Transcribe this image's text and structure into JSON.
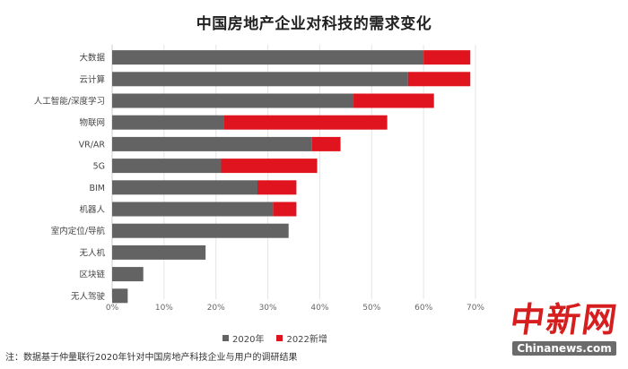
{
  "chart_data": {
    "type": "bar",
    "orientation": "horizontal",
    "stacked": true,
    "title": "中国房地产企业对科技的需求变化",
    "categories": [
      "大数据",
      "云计算",
      "人工智能/深度学习",
      "物联网",
      "VR/AR",
      "5G",
      "BIM",
      "机器人",
      "室内定位/导航",
      "无人机",
      "区块链",
      "无人驾驶"
    ],
    "series": [
      {
        "name": "2020年",
        "color": "#636363",
        "values": [
          60,
          57,
          46.5,
          21.5,
          38.5,
          21,
          28,
          31,
          34,
          18,
          6,
          3
        ]
      },
      {
        "name": "2022新增",
        "color": "#e0141e",
        "values": [
          9,
          12,
          15.5,
          31.5,
          5.5,
          18.5,
          7.5,
          4.5,
          0,
          0,
          0,
          0
        ]
      }
    ],
    "xlim": [
      0,
      70
    ],
    "xticks": [
      "0%",
      "10%",
      "20%",
      "30%",
      "40%",
      "50%",
      "60%",
      "70%"
    ],
    "grid": true,
    "legend": "bottom"
  },
  "note": "注：数据基于仲量联行2020年针对中国房地产科技企业与用户的调研结果",
  "watermark": {
    "logo": "中新网",
    "url": "Chinanews.com"
  }
}
